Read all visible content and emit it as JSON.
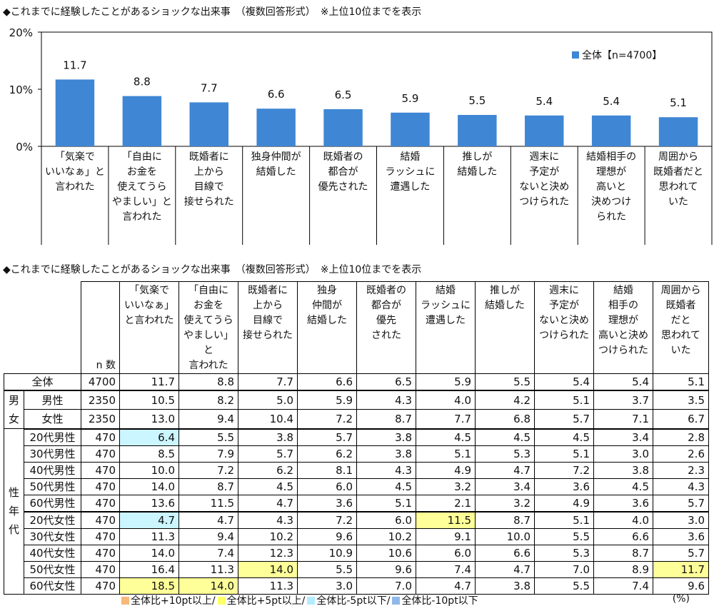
{
  "chart_title": "◆これまでに経験したことがあるショックな出来事　（複数回答形式）　※上位10位までを表示",
  "table_title": "◆これまでに経験したことがあるショックな出来事　（複数回答形式）　※上位10位までを表示",
  "colors": {
    "bar": "#3f86d4",
    "highlight_yellow": "#ffff99",
    "highlight_cyan": "#ccf6ff",
    "swatch_orange": "#f7b87a",
    "swatch_yellow": "#ffff66",
    "swatch_cyan": "#b3ecff",
    "swatch_blue": "#8fb8e8"
  },
  "chart_data": {
    "type": "bar",
    "categories": [
      "「気楽でいいなぁ」と言われた",
      "「自由にお金を使えてうらやましい」と言われた",
      "既婚者に上から目線で接せられた",
      "独身仲間が結婚した",
      "既婚者の都合が優先された",
      "結婚ラッシュに遭遇した",
      "推しが結婚した",
      "週末に予定がないと決めつけられた",
      "結婚相手の理想が高いと決めつけられた",
      "周囲から既婚者だと思われていた"
    ],
    "category_lines": [
      [
        "「気楽で",
        "いいなぁ」と",
        "言われた"
      ],
      [
        "「自由に",
        "お金を",
        "使えてうら",
        "やましい」と",
        "言われた"
      ],
      [
        "既婚者に",
        "上から",
        "目線で",
        "接せられた"
      ],
      [
        "独身仲間が",
        "結婚した"
      ],
      [
        "既婚者の",
        "都合が",
        "優先された"
      ],
      [
        "結婚",
        "ラッシュに",
        "遭遇した"
      ],
      [
        "推しが",
        "結婚した"
      ],
      [
        "週末に",
        "予定が",
        "ないと決め",
        "つけられた"
      ],
      [
        "結婚相手の",
        "理想が",
        "高いと",
        "決めつけ",
        "られた"
      ],
      [
        "周囲から",
        "既婚者だと",
        "思われて",
        "いた"
      ]
    ],
    "series": [
      {
        "name": "全体【n=4700】",
        "values": [
          11.7,
          8.8,
          7.7,
          6.6,
          6.5,
          5.9,
          5.5,
          5.4,
          5.4,
          5.1
        ]
      }
    ],
    "value_labels": [
      "11.7",
      "8.8",
      "7.7",
      "6.6",
      "6.5",
      "5.9",
      "5.5",
      "5.4",
      "5.4",
      "5.1"
    ],
    "ylim": [
      0,
      20
    ],
    "yticks": [
      0,
      10,
      20
    ],
    "ytick_labels": [
      "0%",
      "10%",
      "20%"
    ],
    "legend": "top-right",
    "grid": false
  },
  "table": {
    "n_header": "n 数",
    "col_headers": [
      [
        "「気楽で",
        "いいなぁ」",
        "と言われた"
      ],
      [
        "「自由に",
        "お金を",
        "使えてうら",
        "やましい」と",
        "言われた"
      ],
      [
        "既婚者に",
        "上から",
        "目線で",
        "接せられた"
      ],
      [
        "独身",
        "仲間が",
        "結婚した"
      ],
      [
        "既婚者の",
        "都合が",
        "優先",
        "された"
      ],
      [
        "結婚",
        "ラッシュに",
        "遭遇した"
      ],
      [
        "推しが",
        "結婚した"
      ],
      [
        "週末に",
        "予定が",
        "ないと決め",
        "つけられた"
      ],
      [
        "結婚",
        "相手の",
        "理想が",
        "高いと決め",
        "つけられた"
      ],
      [
        "周囲から",
        "既婚者",
        "だと",
        "思われて",
        "いた"
      ]
    ],
    "groups": {
      "gender": "男女",
      "age_gender": "性年代"
    },
    "rows": [
      {
        "label": "全体",
        "group": "total",
        "n": "4700",
        "values": [
          "11.7",
          "8.8",
          "7.7",
          "6.6",
          "6.5",
          "5.9",
          "5.5",
          "5.4",
          "5.4",
          "5.1"
        ],
        "hl": {}
      },
      {
        "label": "男性",
        "group": "gender",
        "n": "2350",
        "values": [
          "10.5",
          "8.2",
          "5.0",
          "5.9",
          "4.3",
          "4.0",
          "4.2",
          "5.1",
          "3.7",
          "3.5"
        ],
        "hl": {}
      },
      {
        "label": "女性",
        "group": "gender",
        "n": "2350",
        "values": [
          "13.0",
          "9.4",
          "10.4",
          "7.2",
          "8.7",
          "7.7",
          "6.8",
          "5.7",
          "7.1",
          "6.7"
        ],
        "hl": {}
      },
      {
        "label": "20代男性",
        "group": "age",
        "n": "470",
        "values": [
          "6.4",
          "5.5",
          "3.8",
          "5.7",
          "3.8",
          "4.5",
          "4.5",
          "4.5",
          "3.4",
          "2.8"
        ],
        "hl": {
          "0": "cyan"
        }
      },
      {
        "label": "30代男性",
        "group": "age",
        "n": "470",
        "values": [
          "8.5",
          "7.9",
          "5.7",
          "6.2",
          "3.8",
          "5.1",
          "5.3",
          "5.1",
          "3.0",
          "2.6"
        ],
        "hl": {}
      },
      {
        "label": "40代男性",
        "group": "age",
        "n": "470",
        "values": [
          "10.0",
          "7.2",
          "6.2",
          "8.1",
          "4.3",
          "4.9",
          "4.7",
          "7.2",
          "3.8",
          "2.3"
        ],
        "hl": {}
      },
      {
        "label": "50代男性",
        "group": "age",
        "n": "470",
        "values": [
          "14.0",
          "8.7",
          "4.5",
          "6.0",
          "4.5",
          "3.2",
          "3.4",
          "3.6",
          "4.5",
          "4.3"
        ],
        "hl": {}
      },
      {
        "label": "60代男性",
        "group": "age",
        "n": "470",
        "values": [
          "13.6",
          "11.5",
          "4.7",
          "3.6",
          "5.1",
          "2.1",
          "3.2",
          "4.9",
          "3.6",
          "5.7"
        ],
        "hl": {}
      },
      {
        "label": "20代女性",
        "group": "age",
        "n": "470",
        "values": [
          "4.7",
          "4.7",
          "4.3",
          "7.2",
          "6.0",
          "11.5",
          "8.7",
          "5.1",
          "4.0",
          "3.0"
        ],
        "hl": {
          "0": "cyan",
          "5": "yellow"
        }
      },
      {
        "label": "30代女性",
        "group": "age",
        "n": "470",
        "values": [
          "11.3",
          "9.4",
          "10.2",
          "9.6",
          "10.2",
          "9.1",
          "10.0",
          "5.5",
          "6.6",
          "3.6"
        ],
        "hl": {}
      },
      {
        "label": "40代女性",
        "group": "age",
        "n": "470",
        "values": [
          "14.0",
          "7.4",
          "12.3",
          "10.9",
          "10.6",
          "6.0",
          "6.6",
          "5.3",
          "8.7",
          "5.7"
        ],
        "hl": {}
      },
      {
        "label": "50代女性",
        "group": "age",
        "n": "470",
        "values": [
          "16.4",
          "11.3",
          "14.0",
          "5.5",
          "9.6",
          "7.4",
          "4.7",
          "7.0",
          "8.9",
          "11.7"
        ],
        "hl": {
          "2": "yellow",
          "9": "yellow"
        }
      },
      {
        "label": "60代女性",
        "group": "age",
        "n": "470",
        "values": [
          "18.5",
          "14.0",
          "11.3",
          "3.0",
          "7.0",
          "4.7",
          "3.8",
          "5.5",
          "7.4",
          "9.6"
        ],
        "hl": {
          "0": "yellow",
          "1": "yellow"
        }
      }
    ]
  },
  "legend_items": [
    {
      "label": "全体比+10pt以上/",
      "color": "#f7b87a"
    },
    {
      "label": "全体比+5pt以上/",
      "color": "#ffff66"
    },
    {
      "label": "全体比-5pt以下/",
      "color": "#b3ecff"
    },
    {
      "label": "全体比-10pt以下",
      "color": "#8fb8e8"
    }
  ],
  "unit": "(%)"
}
